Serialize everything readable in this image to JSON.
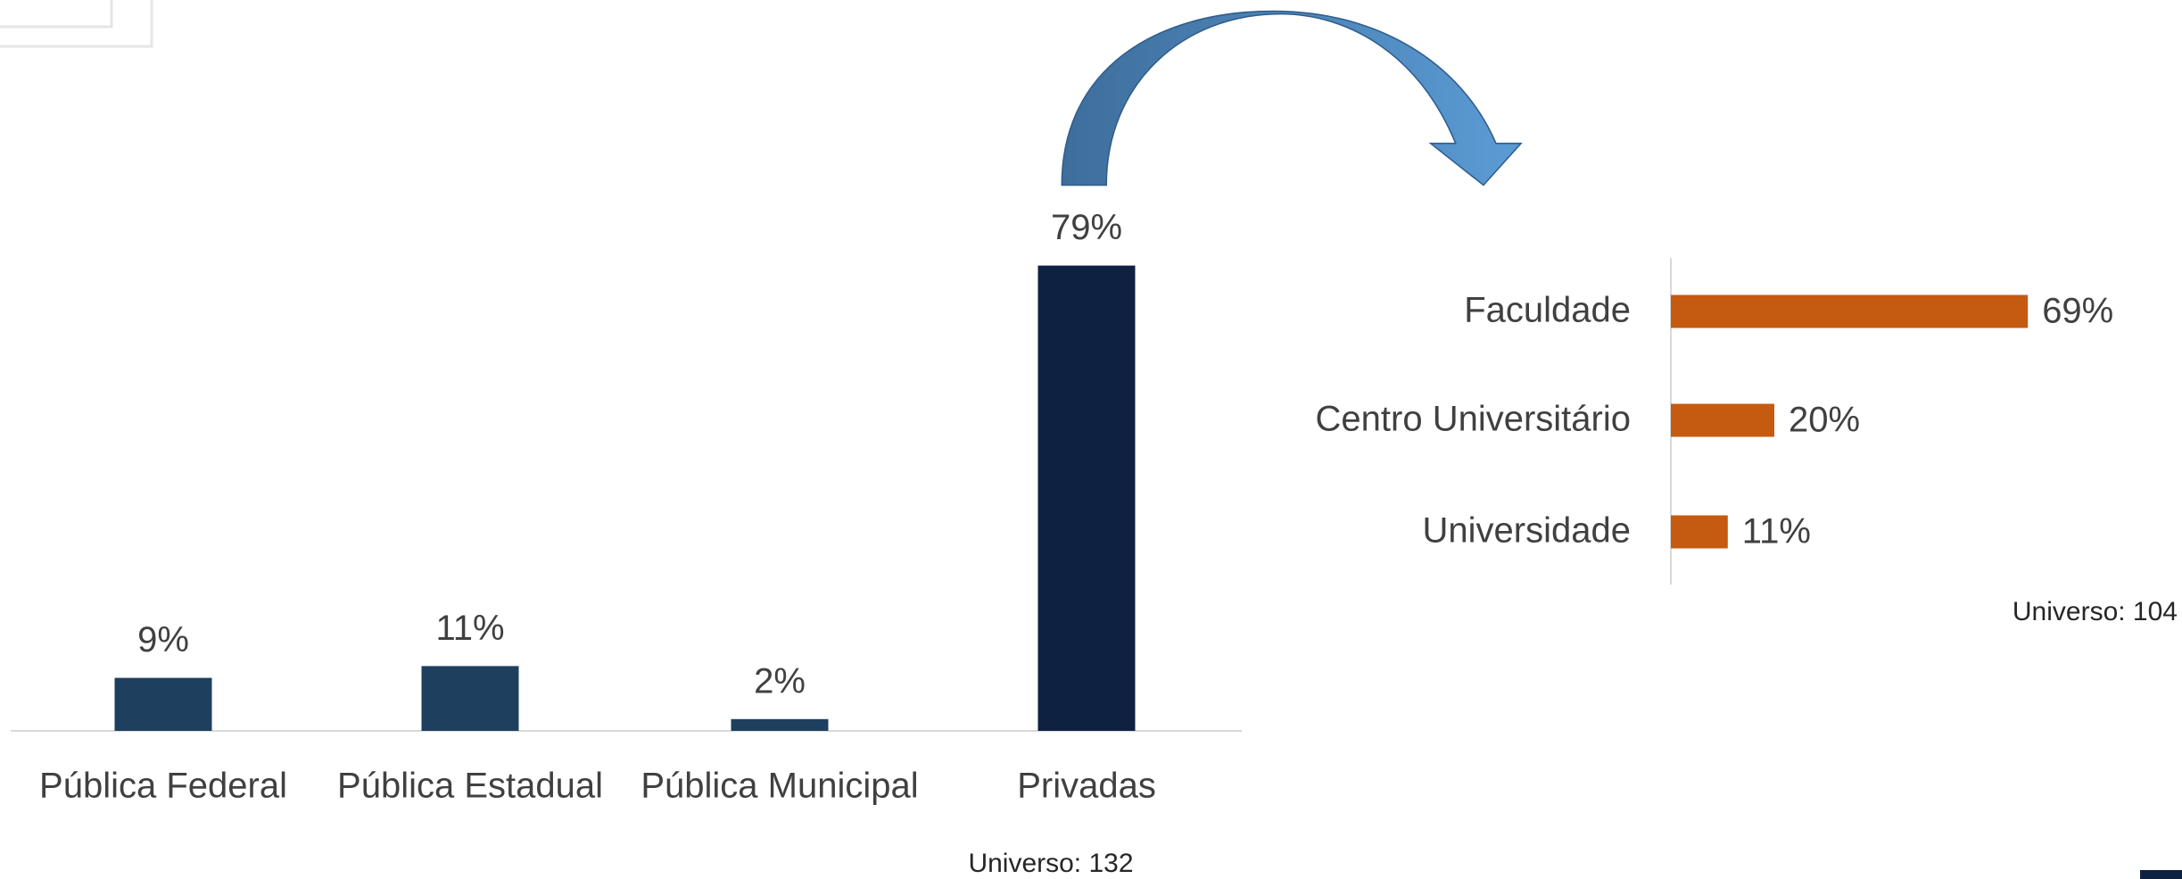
{
  "chart_data": [
    {
      "type": "bar",
      "orientation": "vertical",
      "categories": [
        "Pública Federal",
        "Pública Estadual",
        "Pública Municipal",
        "Privadas"
      ],
      "values": [
        9,
        11,
        2,
        79
      ],
      "value_labels": [
        "9%",
        "11%",
        "2%",
        "79%"
      ],
      "colors": [
        "#1f3f5f",
        "#1f3f5f",
        "#1f3f5f",
        "#0f2140"
      ],
      "note": "Universo: 132"
    },
    {
      "type": "bar",
      "orientation": "horizontal",
      "categories": [
        "Faculdade",
        "Centro Universitário",
        "Universidade"
      ],
      "values": [
        69,
        20,
        11
      ],
      "value_labels": [
        "69%",
        "20%",
        "11%"
      ],
      "color": "#c55a11",
      "note": "Universo: 104"
    }
  ]
}
